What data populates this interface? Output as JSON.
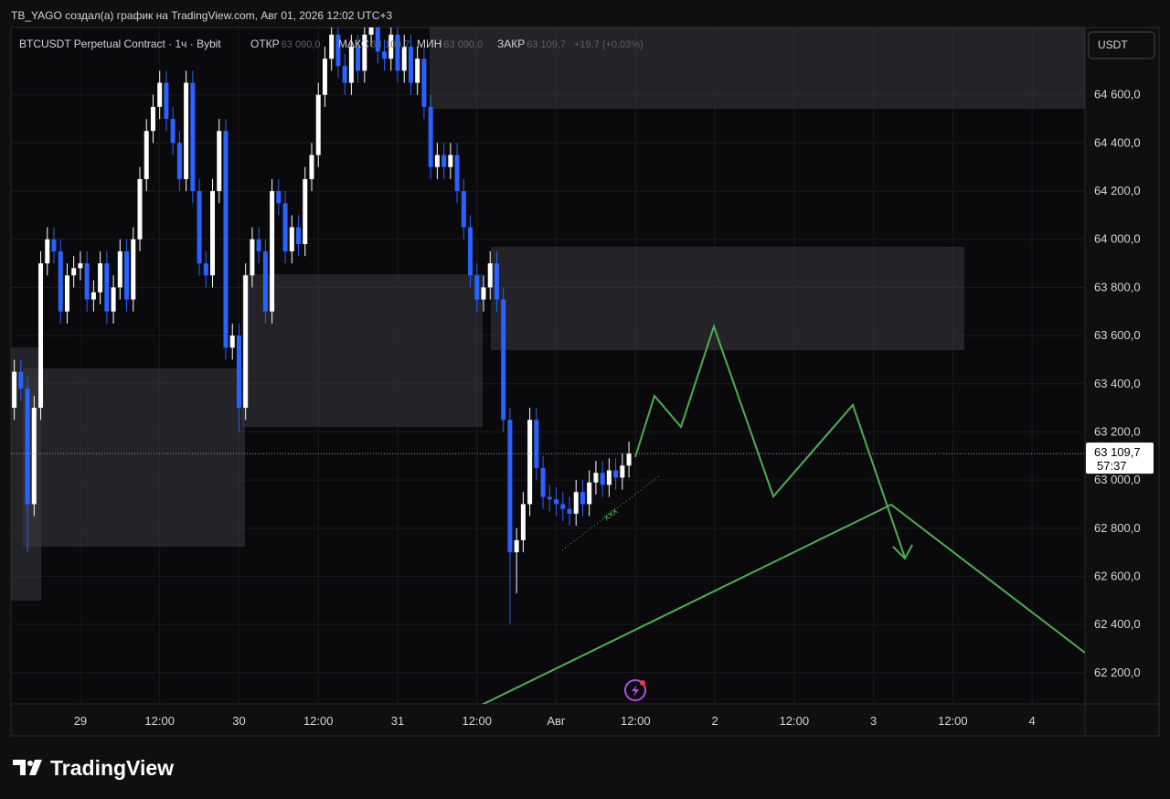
{
  "chart_data": {
    "type": "candlestick",
    "title": "TB_YAGO создал(а) график на TradingView.com, Авг 01, 2026 12:02 UTC+3",
    "symbol": "BTCUSDT Perpetual Contract · 1ч · Bybit",
    "ohlc_legend": [
      {
        "label": "ОТКР",
        "value": "63 090,0"
      },
      {
        "label": "МАКС",
        "value": "63 109,7"
      },
      {
        "label": "МИН",
        "value": "63 090,0"
      },
      {
        "label": "ЗАКР",
        "value": "63 109,7"
      }
    ],
    "change": "+19,7 (+0,03%)",
    "currency": "USDT",
    "last_price_label": "63 109,7",
    "countdown": "57:37",
    "annotation": "xxx",
    "brand": "TradingView",
    "up_color": "#ffffff",
    "down_color": "#2962ff",
    "xlim": [
      -10.5,
      152
    ],
    "ylim": [
      62070,
      64880
    ],
    "xticks": [
      {
        "value": 0,
        "label": "29"
      },
      {
        "value": 12,
        "label": "12:00"
      },
      {
        "value": 24,
        "label": "30"
      },
      {
        "value": 36,
        "label": "12:00"
      },
      {
        "value": 48,
        "label": "31"
      },
      {
        "value": 60,
        "label": "12:00"
      },
      {
        "value": 72,
        "label": "Авг"
      },
      {
        "value": 84,
        "label": "12:00"
      },
      {
        "value": 96,
        "label": "2"
      },
      {
        "value": 108,
        "label": "12:00"
      },
      {
        "value": 120,
        "label": "3"
      },
      {
        "value": 132,
        "label": "12:00"
      },
      {
        "value": 144,
        "label": "4"
      }
    ],
    "yticks": [
      {
        "value": 62200,
        "label": "62 200,0"
      },
      {
        "value": 62400,
        "label": "62 400,0"
      },
      {
        "value": 62600,
        "label": "62 600,0"
      },
      {
        "value": 62800,
        "label": "62 800,0"
      },
      {
        "value": 63000,
        "label": "63 000,0"
      },
      {
        "value": 63200,
        "label": "63 200,0"
      },
      {
        "value": 63400,
        "label": "63 400,0"
      },
      {
        "value": 63600,
        "label": "63 600,0"
      },
      {
        "value": 63800,
        "label": "63 800,0"
      },
      {
        "value": 64000,
        "label": "64 000,0"
      },
      {
        "value": 64200,
        "label": "64 200,0"
      },
      {
        "value": 64400,
        "label": "64 400,0"
      },
      {
        "value": 64600,
        "label": "64 600,0"
      }
    ],
    "candles": {
      "x": [
        -10,
        -9,
        -8,
        -7,
        -6,
        -5,
        -4,
        -3,
        -2,
        -1,
        0,
        1,
        2,
        3,
        4,
        5,
        6,
        7,
        8,
        9,
        10,
        11,
        12,
        13,
        14,
        15,
        16,
        17,
        18,
        19,
        20,
        21,
        22,
        23,
        24,
        25,
        26,
        27,
        28,
        29,
        30,
        31,
        32,
        33,
        34,
        35,
        36,
        37,
        38,
        39,
        40,
        41,
        42,
        43,
        44,
        45,
        46,
        47,
        48,
        49,
        50,
        51,
        52,
        53,
        54,
        55,
        56,
        57,
        58,
        59,
        60,
        61,
        62,
        63,
        64,
        65,
        66,
        67,
        68,
        69,
        70,
        71,
        72,
        73,
        74,
        75,
        76,
        77,
        78,
        79,
        80,
        81,
        82,
        83
      ],
      "open": [
        63300,
        63450,
        63380,
        62900,
        63300,
        63900,
        64000,
        63950,
        63700,
        63850,
        63880,
        63900,
        63750,
        63780,
        63900,
        63700,
        63800,
        63950,
        63750,
        64000,
        64250,
        64450,
        64550,
        64650,
        64500,
        64400,
        64250,
        64650,
        64200,
        63900,
        63850,
        64200,
        64450,
        63550,
        63600,
        63300,
        63850,
        64000,
        63950,
        63700,
        64200,
        64150,
        63950,
        64050,
        63980,
        64250,
        64350,
        64600,
        64750,
        64850,
        64720,
        64650,
        64800,
        64700,
        64850,
        64900,
        64780,
        64750,
        64850,
        64700,
        64800,
        64650,
        64750,
        64550,
        64300,
        64350,
        64300,
        64350,
        64200,
        64050,
        63850,
        63750,
        63800,
        63900,
        63750,
        63250,
        62700,
        62750,
        62900,
        63250,
        63050,
        62930,
        62920,
        62900,
        62880,
        62860,
        62950,
        62900,
        62990,
        63030,
        62980,
        63040,
        63010,
        63060
      ],
      "high": [
        63500,
        63500,
        63430,
        63350,
        63950,
        64050,
        64050,
        64000,
        63900,
        63930,
        63950,
        63950,
        63830,
        63950,
        63950,
        63850,
        64000,
        64000,
        64050,
        64300,
        64500,
        64600,
        64700,
        64700,
        64550,
        64450,
        64700,
        64700,
        64250,
        63950,
        64250,
        64500,
        64500,
        63650,
        63650,
        63900,
        64050,
        64050,
        64000,
        64250,
        64250,
        64200,
        64100,
        64100,
        64300,
        64400,
        64650,
        64800,
        64900,
        64900,
        64770,
        64850,
        64850,
        64900,
        64950,
        64950,
        64830,
        64900,
        64900,
        64850,
        64850,
        64800,
        64800,
        64600,
        64400,
        64400,
        64400,
        64400,
        64250,
        64100,
        63900,
        63850,
        63950,
        63950,
        63800,
        63300,
        62800,
        62950,
        63300,
        63300,
        63100,
        62980,
        62970,
        62950,
        62930,
        63000,
        63000,
        63040,
        63080,
        63080,
        63090,
        63090,
        63110,
        63160
      ],
      "low": [
        63250,
        63330,
        62700,
        62850,
        63250,
        63850,
        63900,
        63650,
        63650,
        63800,
        63830,
        63700,
        63700,
        63730,
        63650,
        63650,
        63750,
        63700,
        63700,
        63950,
        64200,
        64400,
        64500,
        64450,
        64350,
        64200,
        64200,
        64150,
        63850,
        63800,
        63800,
        64150,
        63500,
        63500,
        63200,
        63250,
        63800,
        63900,
        63650,
        63650,
        64100,
        63900,
        63900,
        63930,
        63930,
        64200,
        64300,
        64550,
        64700,
        64670,
        64600,
        64600,
        64650,
        64650,
        64800,
        64730,
        64700,
        64700,
        64650,
        64650,
        64600,
        64600,
        64500,
        64250,
        64250,
        64250,
        64250,
        64150,
        64000,
        63800,
        63700,
        63700,
        63750,
        63700,
        63200,
        62400,
        62530,
        62700,
        62850,
        63000,
        62880,
        62870,
        62850,
        62830,
        62810,
        62810,
        62850,
        62850,
        62940,
        62930,
        62930,
        62960,
        62960,
        63010
      ],
      "close": [
        63450,
        63380,
        62900,
        63300,
        63900,
        64000,
        63950,
        63700,
        63850,
        63880,
        63900,
        63750,
        63780,
        63900,
        63700,
        63800,
        63950,
        63750,
        64000,
        64250,
        64450,
        64550,
        64650,
        64500,
        64400,
        64250,
        64650,
        64200,
        63900,
        63850,
        64200,
        64450,
        63550,
        63600,
        63300,
        63850,
        64000,
        63950,
        63700,
        64200,
        64150,
        63950,
        64050,
        63980,
        64250,
        64350,
        64600,
        64750,
        64850,
        64720,
        64650,
        64800,
        64700,
        64850,
        64900,
        64780,
        64750,
        64850,
        64700,
        64800,
        64650,
        64750,
        64550,
        64300,
        64350,
        64300,
        64350,
        64200,
        64050,
        63850,
        63750,
        63800,
        63900,
        63750,
        63250,
        62700,
        62750,
        62900,
        63250,
        63050,
        62930,
        62920,
        62900,
        62880,
        62860,
        62950,
        62900,
        62990,
        63030,
        62980,
        63040,
        63010,
        63060,
        63110
      ]
    }
  }
}
